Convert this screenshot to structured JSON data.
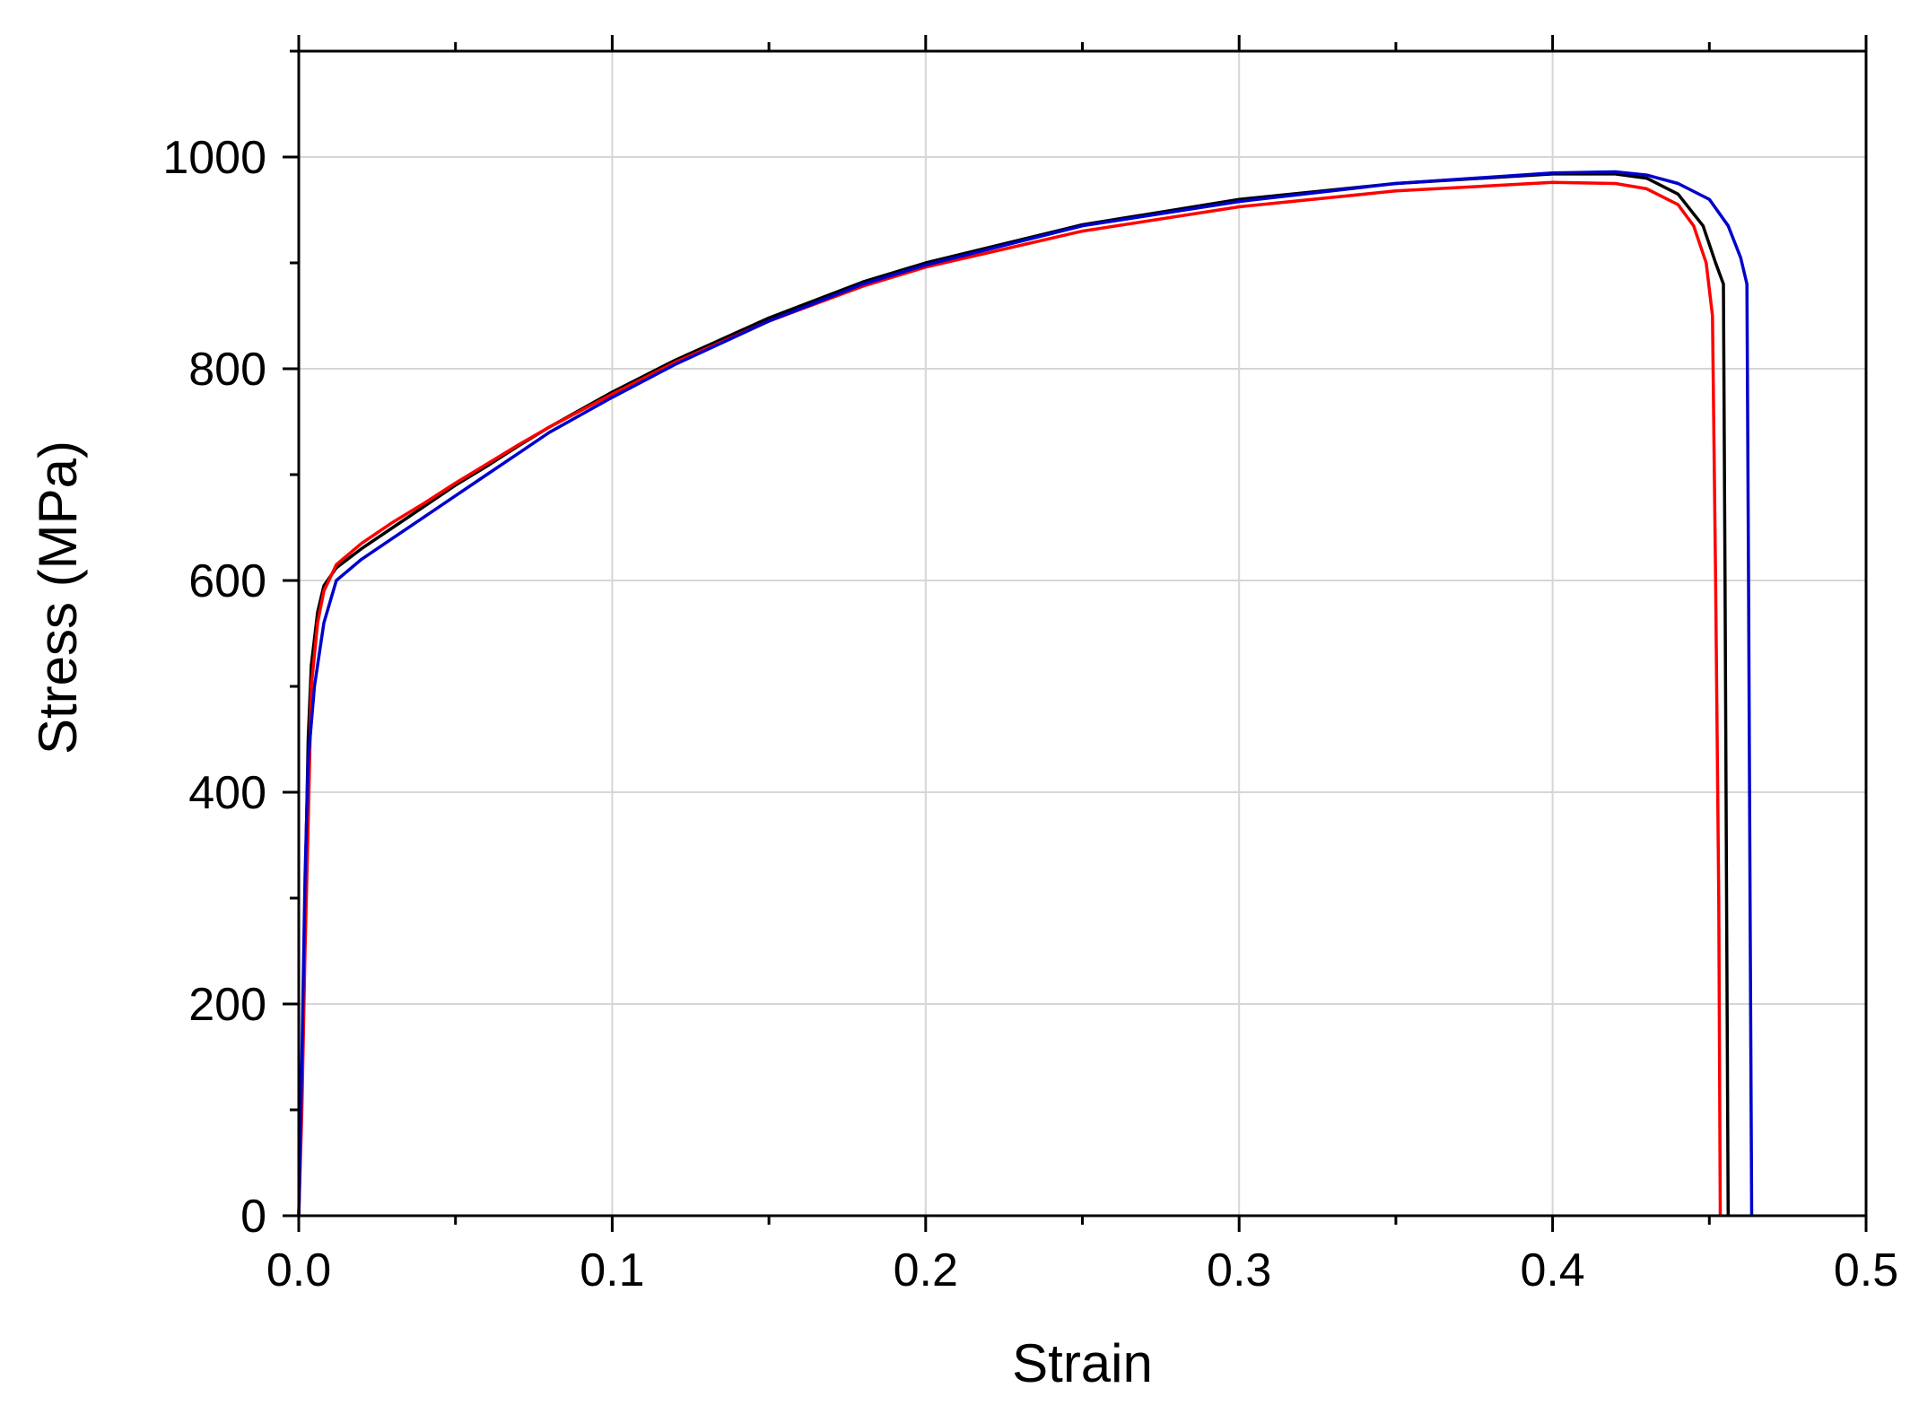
{
  "chart_data": {
    "type": "line",
    "title": "",
    "xlabel": "Strain",
    "ylabel": "Stress (MPa)",
    "xlim": [
      0,
      0.5
    ],
    "ylim": [
      0,
      1100
    ],
    "x_ticks": [
      "0.0",
      "0.1",
      "0.2",
      "0.3",
      "0.4",
      "0.5"
    ],
    "y_ticks": [
      "0",
      "200",
      "400",
      "600",
      "800",
      "1000"
    ],
    "grid": true,
    "legend": "none",
    "series": [
      {
        "color": "#000000",
        "points": [
          [
            0,
            0
          ],
          [
            0.001,
            120
          ],
          [
            0.002,
            300
          ],
          [
            0.003,
            450
          ],
          [
            0.004,
            520
          ],
          [
            0.006,
            570
          ],
          [
            0.008,
            595
          ],
          [
            0.012,
            612
          ],
          [
            0.02,
            630
          ],
          [
            0.03,
            650
          ],
          [
            0.04,
            670
          ],
          [
            0.05,
            690
          ],
          [
            0.06,
            708
          ],
          [
            0.07,
            727
          ],
          [
            0.08,
            745
          ],
          [
            0.1,
            778
          ],
          [
            0.12,
            808
          ],
          [
            0.15,
            848
          ],
          [
            0.18,
            882
          ],
          [
            0.2,
            900
          ],
          [
            0.25,
            936
          ],
          [
            0.3,
            960
          ],
          [
            0.35,
            975
          ],
          [
            0.4,
            984
          ],
          [
            0.42,
            984
          ],
          [
            0.43,
            980
          ],
          [
            0.44,
            965
          ],
          [
            0.448,
            935
          ],
          [
            0.452,
            900
          ],
          [
            0.4545,
            880
          ],
          [
            0.455,
            600
          ],
          [
            0.4555,
            300
          ],
          [
            0.456,
            0
          ]
        ]
      },
      {
        "color": "#ff0000",
        "points": [
          [
            0,
            0
          ],
          [
            0.001,
            100
          ],
          [
            0.002,
            250
          ],
          [
            0.003,
            370
          ],
          [
            0.004,
            500
          ],
          [
            0.006,
            560
          ],
          [
            0.008,
            590
          ],
          [
            0.012,
            615
          ],
          [
            0.02,
            635
          ],
          [
            0.03,
            655
          ],
          [
            0.04,
            673
          ],
          [
            0.05,
            692
          ],
          [
            0.06,
            710
          ],
          [
            0.07,
            728
          ],
          [
            0.08,
            745
          ],
          [
            0.1,
            776
          ],
          [
            0.12,
            806
          ],
          [
            0.15,
            845
          ],
          [
            0.18,
            878
          ],
          [
            0.2,
            896
          ],
          [
            0.25,
            930
          ],
          [
            0.3,
            953
          ],
          [
            0.35,
            968
          ],
          [
            0.4,
            976
          ],
          [
            0.42,
            975
          ],
          [
            0.43,
            970
          ],
          [
            0.44,
            955
          ],
          [
            0.445,
            935
          ],
          [
            0.449,
            900
          ],
          [
            0.451,
            850
          ],
          [
            0.452,
            600
          ],
          [
            0.453,
            300
          ],
          [
            0.4535,
            0
          ]
        ]
      },
      {
        "color": "#0000cc",
        "points": [
          [
            0,
            0
          ],
          [
            0.001,
            150
          ],
          [
            0.002,
            320
          ],
          [
            0.003,
            430
          ],
          [
            0.005,
            500
          ],
          [
            0.008,
            560
          ],
          [
            0.012,
            600
          ],
          [
            0.02,
            620
          ],
          [
            0.03,
            640
          ],
          [
            0.04,
            660
          ],
          [
            0.05,
            680
          ],
          [
            0.06,
            700
          ],
          [
            0.07,
            720
          ],
          [
            0.08,
            740
          ],
          [
            0.1,
            773
          ],
          [
            0.12,
            804
          ],
          [
            0.15,
            845
          ],
          [
            0.18,
            880
          ],
          [
            0.2,
            898
          ],
          [
            0.25,
            935
          ],
          [
            0.3,
            958
          ],
          [
            0.35,
            975
          ],
          [
            0.4,
            985
          ],
          [
            0.42,
            986
          ],
          [
            0.43,
            983
          ],
          [
            0.44,
            975
          ],
          [
            0.45,
            960
          ],
          [
            0.456,
            935
          ],
          [
            0.46,
            905
          ],
          [
            0.462,
            880
          ],
          [
            0.4625,
            600
          ],
          [
            0.463,
            300
          ],
          [
            0.4635,
            0
          ]
        ]
      }
    ]
  }
}
